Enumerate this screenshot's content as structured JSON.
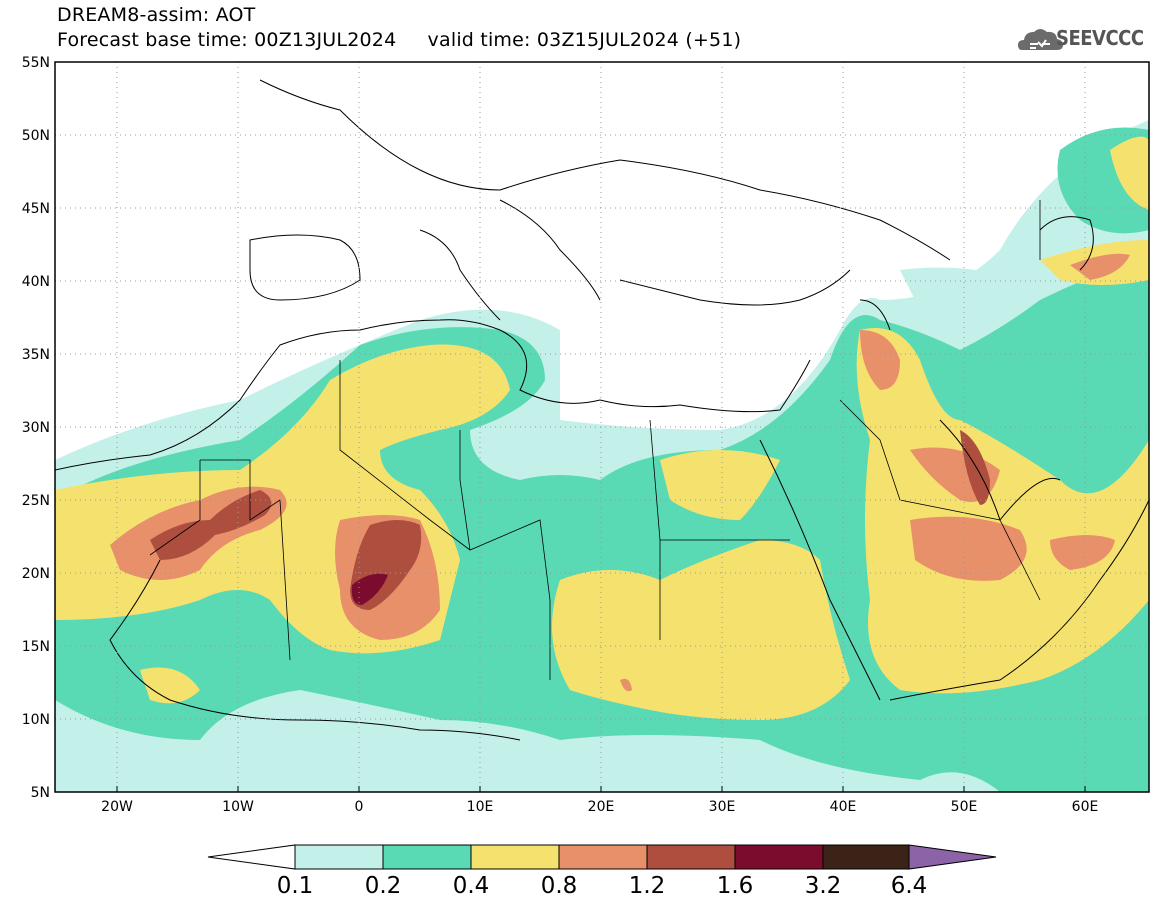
{
  "title": {
    "line1": "DREAM8-assim: AOT",
    "line2": "Forecast base time: 00Z13JUL2024     valid time: 03Z15JUL2024 (+51)"
  },
  "logo": {
    "text": "SEEVCCC",
    "icon": "cloud-icon"
  },
  "map": {
    "lon_range": [
      -25,
      65
    ],
    "lat_range": [
      5,
      55
    ],
    "lat_ticks": [
      "5N",
      "10N",
      "15N",
      "20N",
      "25N",
      "30N",
      "35N",
      "40N",
      "45N",
      "50N",
      "55N"
    ],
    "lon_ticks": [
      "20W",
      "10W",
      "0",
      "10E",
      "20E",
      "30E",
      "40E",
      "50E",
      "60E"
    ],
    "gridlines": "dotted"
  },
  "colorbar": {
    "levels": [
      "0.1",
      "0.2",
      "0.4",
      "0.8",
      "1.2",
      "1.6",
      "3.2",
      "6.4"
    ],
    "colors": [
      "#ffffff",
      "#c4f0ea",
      "#5ad9b5",
      "#f5e26e",
      "#e8906a",
      "#ad4e3e",
      "#7c0c2e",
      "#3b2417",
      "#8d63a8"
    ]
  }
}
